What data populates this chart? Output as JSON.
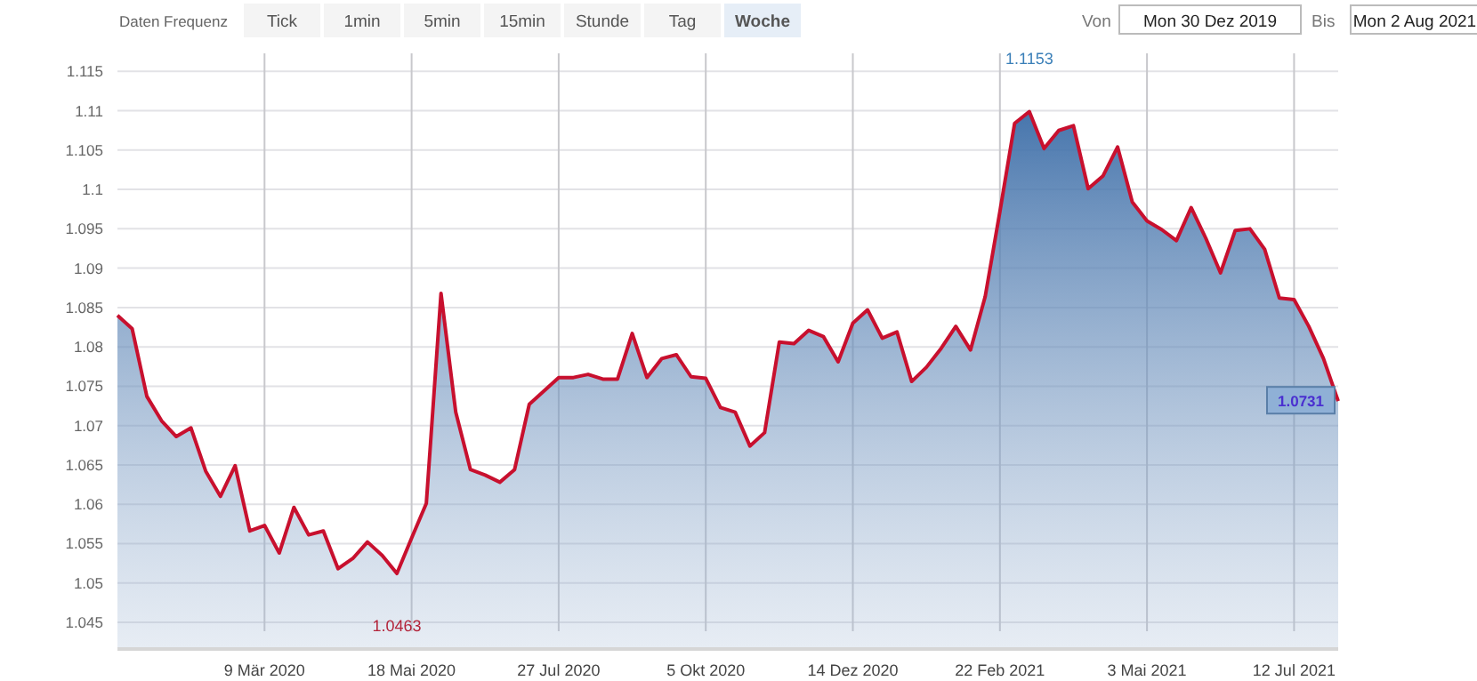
{
  "chart_data": [
    {
      "type": "other",
      "categories": [
        "Tick",
        "1min",
        "5min",
        "15min",
        "Stunde",
        "Tag",
        "Woche"
      ],
      "colors": [
        "#f4f4f4",
        "#f4f4f4",
        "#f4f4f4",
        "#f4f4f4",
        "#f4f4f4",
        "#f4f4f4",
        "#e6eef7"
      ],
      "annotations": [
        "Daten Frequenz",
        "Von",
        "Mon 30 Dez 2019",
        "Bis",
        "Mon 2 Aug 2021"
      ]
    },
    {
      "type": "area",
      "x": [
        "2019-12-30",
        "2020-01-06",
        "2020-01-13",
        "2020-01-20",
        "2020-01-27",
        "2020-02-03",
        "2020-02-10",
        "2020-02-17",
        "2020-02-24",
        "2020-03-02",
        "2020-03-09",
        "2020-03-16",
        "2020-03-23",
        "2020-03-30",
        "2020-04-06",
        "2020-04-13",
        "2020-04-20",
        "2020-04-27",
        "2020-05-04",
        "2020-05-11",
        "2020-05-18",
        "2020-05-25",
        "2020-06-01",
        "2020-06-08",
        "2020-06-15",
        "2020-06-22",
        "2020-06-29",
        "2020-07-06",
        "2020-07-13",
        "2020-07-20",
        "2020-07-27",
        "2020-08-03",
        "2020-08-10",
        "2020-08-17",
        "2020-08-24",
        "2020-08-31",
        "2020-09-07",
        "2020-09-14",
        "2020-09-21",
        "2020-09-28",
        "2020-10-05",
        "2020-10-12",
        "2020-10-19",
        "2020-10-26",
        "2020-11-02",
        "2020-11-09",
        "2020-11-16",
        "2020-11-23",
        "2020-11-30",
        "2020-12-07",
        "2020-12-14",
        "2020-12-21",
        "2020-12-28",
        "2021-01-04",
        "2021-01-11",
        "2021-01-18",
        "2021-01-25",
        "2021-02-01",
        "2021-02-08",
        "2021-02-15",
        "2021-02-22",
        "2021-03-01",
        "2021-03-08",
        "2021-03-15",
        "2021-03-22",
        "2021-03-29",
        "2021-04-05",
        "2021-04-12",
        "2021-04-19",
        "2021-04-26",
        "2021-05-03",
        "2021-05-10",
        "2021-05-17",
        "2021-05-24",
        "2021-05-31",
        "2021-06-07",
        "2021-06-14",
        "2021-06-21",
        "2021-06-28",
        "2021-07-05",
        "2021-07-12",
        "2021-07-19",
        "2021-07-26",
        "2021-08-02"
      ],
      "series": [
        {
          "color": "#c8102e",
          "values": [
            1.084,
            1.0823,
            1.0737,
            1.0706,
            1.0686,
            1.0697,
            1.0642,
            1.061,
            1.0649,
            1.0566,
            1.0573,
            1.0538,
            1.0596,
            1.0561,
            1.0566,
            1.0518,
            1.0531,
            1.0552,
            1.0535,
            1.0512,
            1.0557,
            1.0601,
            1.0868,
            1.0717,
            1.0644,
            1.0637,
            1.0628,
            1.0644,
            1.0727,
            1.0744,
            1.0761,
            1.0761,
            1.0765,
            1.0759,
            1.0759,
            1.0817,
            1.0761,
            1.0785,
            1.079,
            1.0762,
            1.076,
            1.0723,
            1.0717,
            1.0674,
            1.0691,
            1.0806,
            1.0804,
            1.0821,
            1.0813,
            1.0781,
            1.083,
            1.0847,
            1.0811,
            1.0819,
            1.0756,
            1.0774,
            1.0798,
            1.0826,
            1.0796,
            1.0864,
            1.0972,
            1.1084,
            1.1099,
            1.1052,
            1.1075,
            1.1081,
            1.1001,
            1.1017,
            1.1054,
            1.0984,
            1.096,
            1.0949,
            1.0935,
            1.0977,
            1.0938,
            1.0894,
            1.0948,
            1.095,
            1.0924,
            1.0862,
            1.086,
            1.0826,
            1.0785,
            1.0731
          ]
        }
      ],
      "xlim": [
        "2019-12-30",
        "2021-08-02"
      ],
      "xticks": [
        {
          "value": "2020-03-09",
          "label": "9 Mär 2020"
        },
        {
          "value": "2020-05-18",
          "label": "18 Mai 2020"
        },
        {
          "value": "2020-07-27",
          "label": "27 Jul 2020"
        },
        {
          "value": "2020-10-05",
          "label": "5 Okt 2020"
        },
        {
          "value": "2020-12-14",
          "label": "14 Dez 2020"
        },
        {
          "value": "2021-02-22",
          "label": "22 Feb 2021"
        },
        {
          "value": "2021-05-03",
          "label": "3 Mai 2021"
        },
        {
          "value": "2021-07-12",
          "label": "12 Jul 2021"
        }
      ],
      "ylim": [
        1.0416,
        1.1173
      ],
      "yticks": [
        1.045,
        1.05,
        1.055,
        1.06,
        1.065,
        1.07,
        1.075,
        1.08,
        1.085,
        1.09,
        1.095,
        1.1,
        1.105,
        1.11,
        1.115
      ],
      "grid": true,
      "annotations": [
        "1.1153",
        "1.0463",
        {
          "text": "1.0731",
          "x": "2021-08-02",
          "y": 1.0731
        }
      ]
    }
  ]
}
